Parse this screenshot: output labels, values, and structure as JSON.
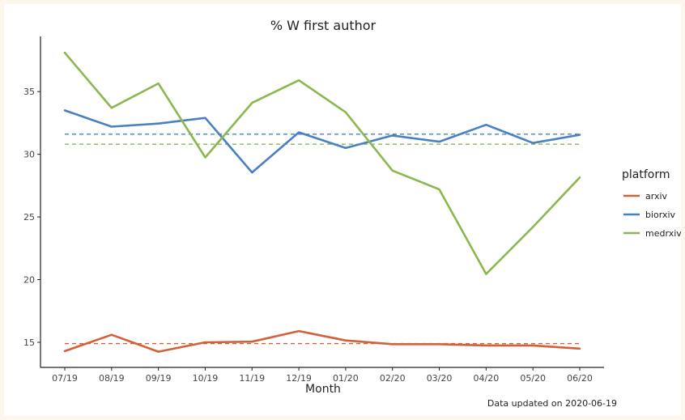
{
  "chart_data": {
    "type": "line",
    "title": "% W first author",
    "xlabel": "Month",
    "ylabel": "",
    "categories": [
      "07/19",
      "08/19",
      "09/19",
      "10/19",
      "11/19",
      "12/19",
      "01/20",
      "02/20",
      "03/20",
      "04/20",
      "05/20",
      "06/20"
    ],
    "ylim": [
      13.0,
      39.4
    ],
    "yticks": [
      15,
      20,
      25,
      30,
      35
    ],
    "legend_title": "platform",
    "legend_position": "right",
    "grid": false,
    "series": [
      {
        "name": "arxiv",
        "color": "#d2613a",
        "values": [
          14.3,
          15.6,
          14.25,
          15.0,
          15.05,
          15.9,
          15.15,
          14.85,
          14.85,
          14.75,
          14.75,
          14.5
        ],
        "mean": 14.9
      },
      {
        "name": "biorxiv",
        "color": "#4a80c2",
        "values": [
          33.5,
          32.2,
          32.45,
          32.9,
          28.55,
          31.75,
          30.5,
          31.5,
          31.0,
          32.35,
          30.9,
          31.55
        ],
        "mean": 31.6
      },
      {
        "name": "medrxiv",
        "color": "#8db650",
        "values": [
          38.1,
          33.7,
          35.65,
          29.75,
          34.1,
          35.9,
          33.35,
          28.7,
          27.2,
          20.45,
          24.2,
          28.15
        ],
        "mean": 30.8
      }
    ]
  },
  "caption": "Data updated on  2020-06-19"
}
